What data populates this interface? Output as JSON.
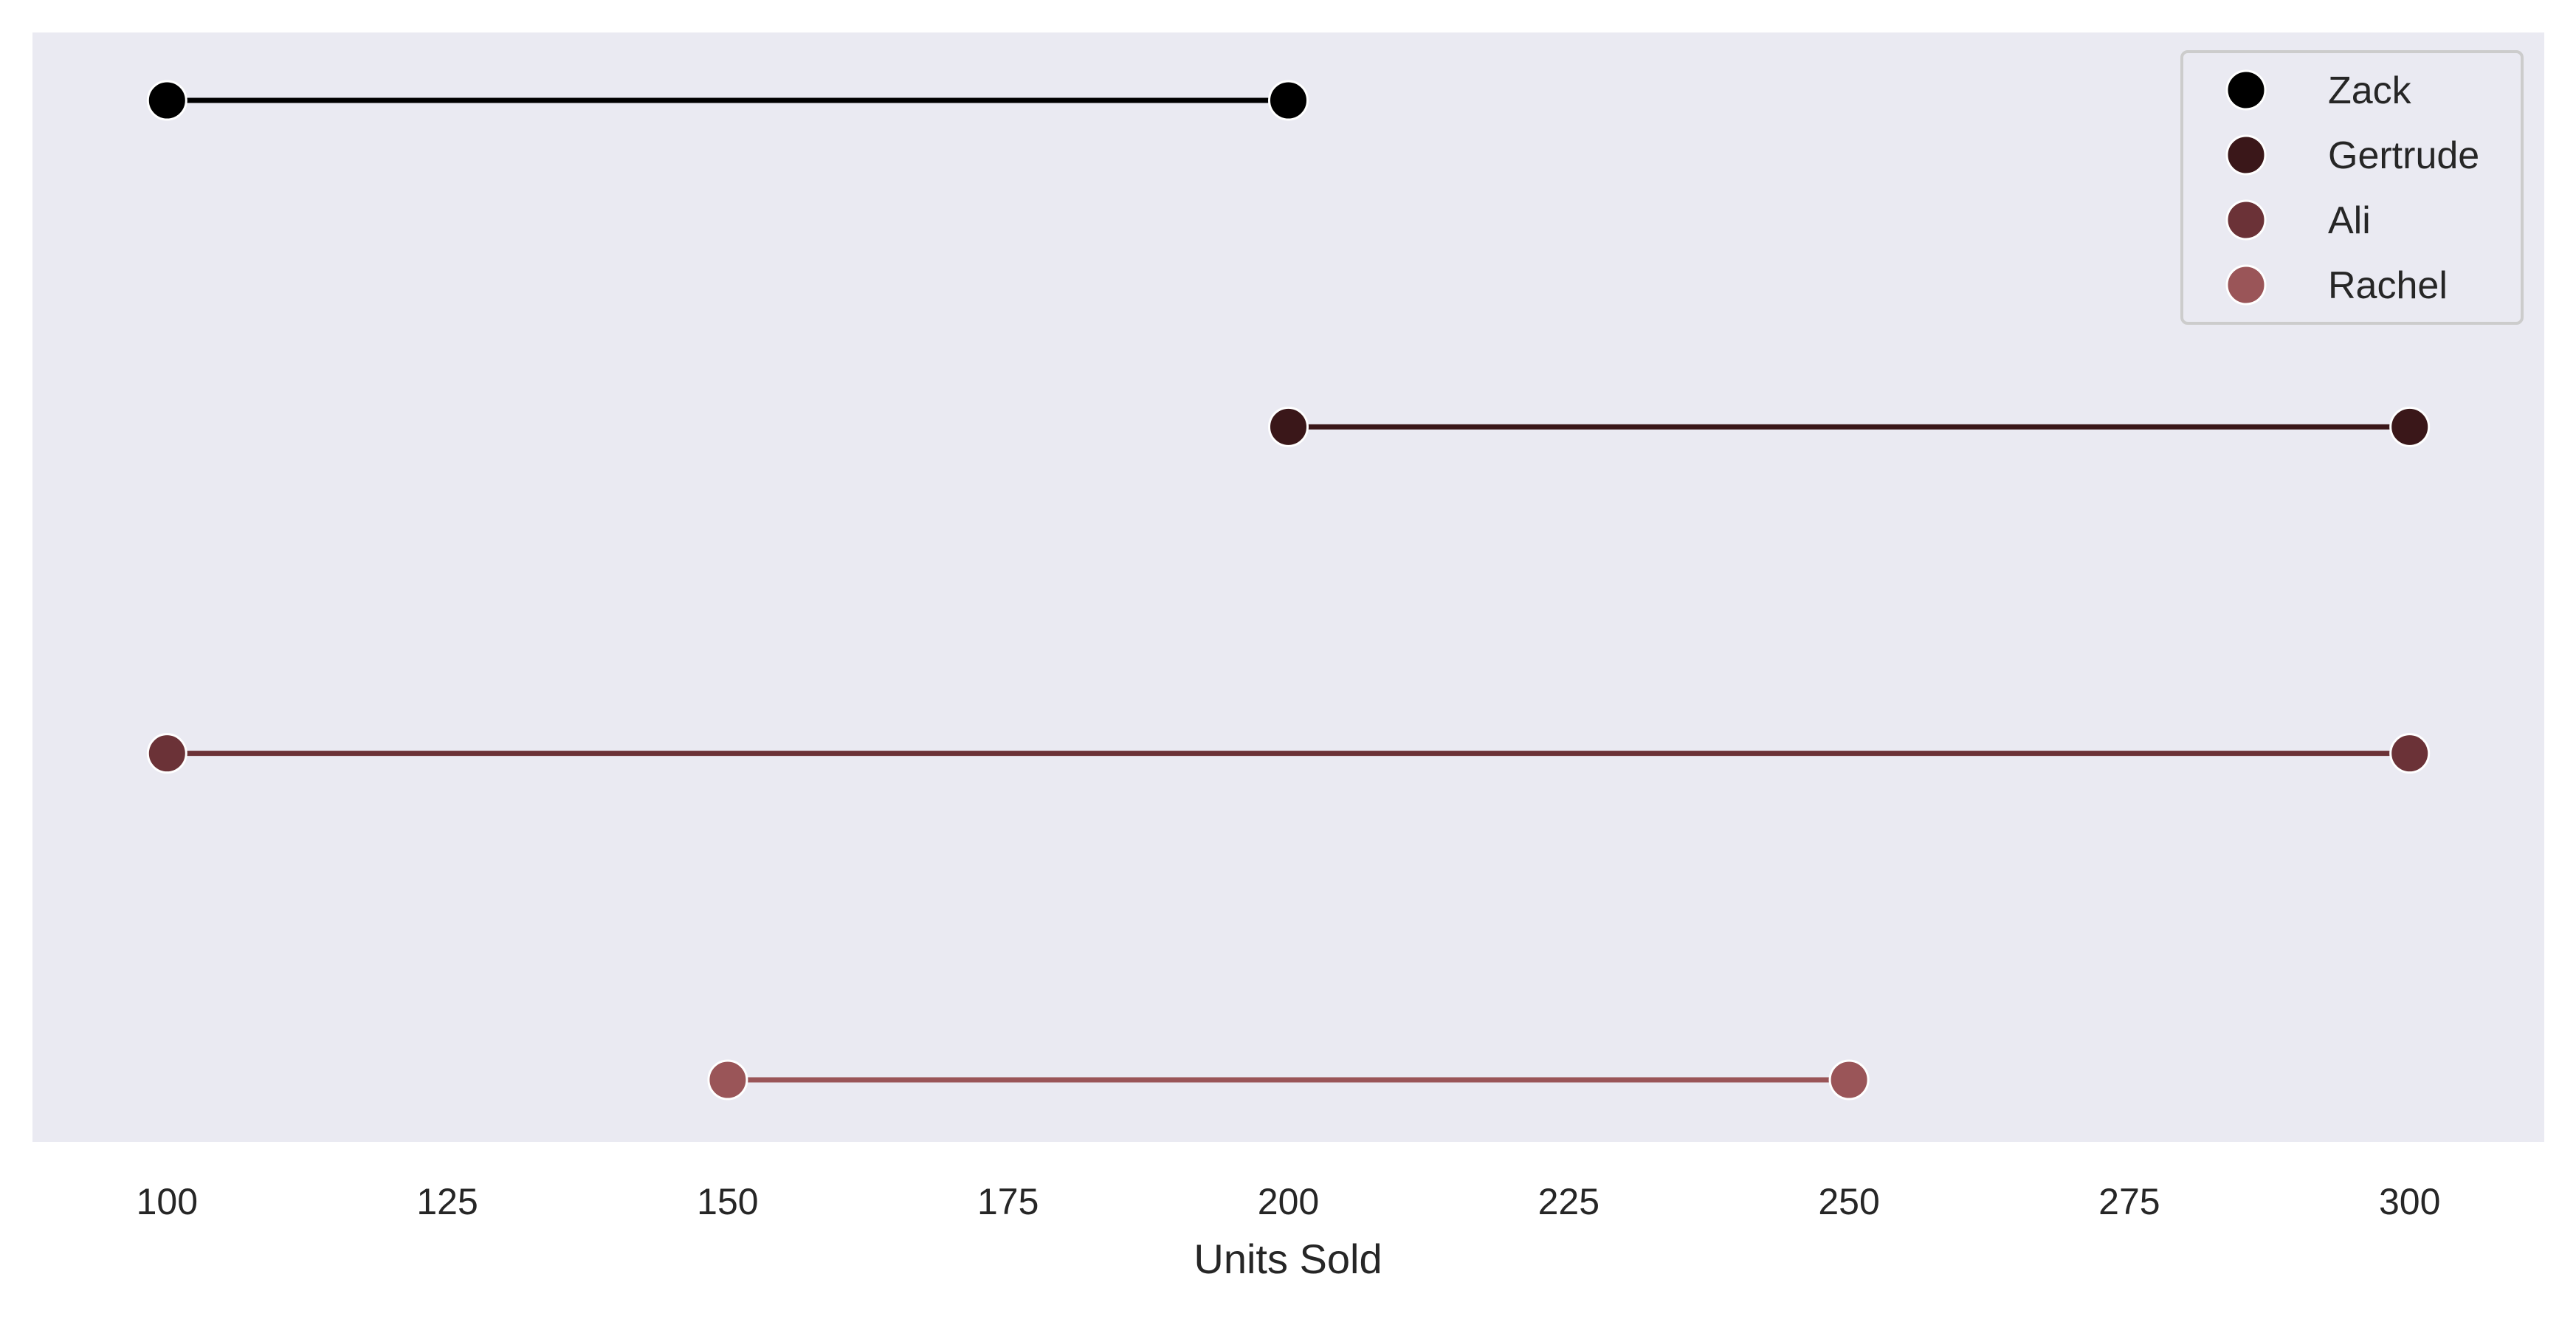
{
  "chart_data": {
    "type": "dumbbell",
    "title": "",
    "xlabel": "Units Sold",
    "ylabel": "",
    "xlim": [
      88,
      312
    ],
    "x_ticks": [
      100,
      125,
      150,
      175,
      200,
      225,
      250,
      275,
      300
    ],
    "grid": false,
    "legend_position": "top-right",
    "background_color": "#eaeaf2",
    "series": [
      {
        "name": "Zack",
        "start": 100,
        "end": 200,
        "color": "#000000"
      },
      {
        "name": "Gertrude",
        "start": 200,
        "end": 300,
        "color": "#3a1719"
      },
      {
        "name": "Ali",
        "start": 100,
        "end": 300,
        "color": "#6b3237"
      },
      {
        "name": "Rachel",
        "start": 150,
        "end": 250,
        "color": "#9a5558"
      }
    ]
  }
}
